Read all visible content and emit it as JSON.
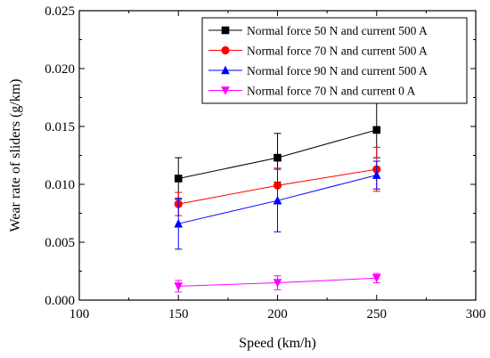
{
  "chart_data": {
    "type": "line",
    "title": "",
    "xlabel": "Speed (km/h)",
    "ylabel": "Wear rate of sliders (g/km)",
    "xlim": [
      100,
      300
    ],
    "ylim": [
      0.0,
      0.025
    ],
    "xticks": [
      100,
      150,
      200,
      250,
      300
    ],
    "xtick_labels": [
      "100",
      "150",
      "200",
      "250",
      "300"
    ],
    "yticks": [
      0.0,
      0.005,
      0.01,
      0.015,
      0.02,
      0.025
    ],
    "ytick_labels": [
      "0.000",
      "0.005",
      "0.010",
      "0.015",
      "0.020",
      "0.025"
    ],
    "grid": false,
    "legend_position": "top-right",
    "series": [
      {
        "name": "Normal force 50 N and current 500 A",
        "color": "#000000",
        "marker": "square",
        "x": [
          150,
          200,
          250
        ],
        "y": [
          0.0105,
          0.0123,
          0.0147
        ],
        "error": [
          0.0018,
          0.0021,
          0.0024
        ]
      },
      {
        "name": "Normal force 70 N and current 500 A",
        "color": "#ff0000",
        "marker": "circle",
        "x": [
          150,
          200,
          250
        ],
        "y": [
          0.0083,
          0.0099,
          0.0113
        ],
        "error": [
          0.001,
          0.0015,
          0.0019
        ]
      },
      {
        "name": "Normal force 90 N and current 500 A",
        "color": "#0000ff",
        "marker": "triangle-up",
        "x": [
          150,
          200,
          250
        ],
        "y": [
          0.0066,
          0.0086,
          0.0108
        ],
        "error": [
          0.0022,
          0.0027,
          0.0012
        ]
      },
      {
        "name": "Normal force 70 N and current 0 A",
        "color": "#ff00ff",
        "marker": "triangle-down",
        "x": [
          150,
          200,
          250
        ],
        "y": [
          0.0012,
          0.0015,
          0.0019
        ],
        "error": [
          0.0005,
          0.0006,
          0.0004
        ]
      }
    ]
  }
}
